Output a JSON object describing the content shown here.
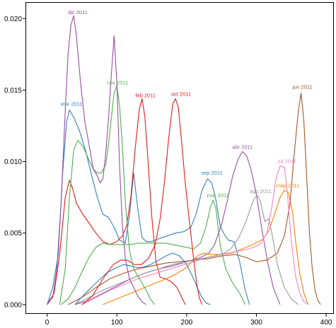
{
  "chart_data": {
    "type": "line",
    "title": "",
    "xlabel": "",
    "ylabel": "",
    "xlim": [
      -30,
      410
    ],
    "ylim": [
      -0.0006,
      0.0211
    ],
    "xticks": [
      0,
      100,
      200,
      300,
      400
    ],
    "xtick_labels": [
      "0",
      "100",
      "200",
      "300",
      "400"
    ],
    "yticks": [
      0.0,
      0.005,
      0.01,
      0.015,
      0.02
    ],
    "ytick_labels": [
      "0.000",
      "0.005",
      "0.010",
      "0.015",
      "0.020"
    ],
    "grid": false,
    "legend": "inline labels at curve peaks",
    "series": [
      {
        "name": "ene 2011",
        "color": "#377eb8",
        "label_x": 35,
        "label_y": 0.0139,
        "x": [
          0,
          8,
          16,
          22,
          28,
          32,
          38,
          46,
          55,
          64,
          72,
          80,
          88,
          96,
          104,
          112,
          118,
          124,
          130,
          136,
          142,
          150,
          160,
          172,
          184,
          196,
          206,
          214,
          222,
          230,
          236,
          242,
          248,
          254,
          260,
          268,
          276,
          284,
          290
        ],
        "y": [
          0,
          0.0012,
          0.0035,
          0.009,
          0.0128,
          0.0136,
          0.0131,
          0.0122,
          0.0108,
          0.009,
          0.0075,
          0.0063,
          0.0061,
          0.0054,
          0.0045,
          0.0043,
          0.0062,
          0.0092,
          0.0067,
          0.0047,
          0.0044,
          0.0044,
          0.0046,
          0.0048,
          0.005,
          0.0051,
          0.0054,
          0.0064,
          0.008,
          0.0088,
          0.0085,
          0.0073,
          0.0055,
          0.0049,
          0.0045,
          0.0044,
          0.003,
          0.001,
          0
        ]
      },
      {
        "name": "feb 2011",
        "color": "#e41a1c",
        "label_x": 141,
        "label_y": 0.0145,
        "x": [
          0,
          10,
          18,
          26,
          32,
          36,
          42,
          50,
          60,
          70,
          80,
          90,
          100,
          108,
          114,
          120,
          126,
          132,
          136,
          140,
          144,
          150,
          156,
          162,
          170,
          178,
          186,
          192,
          198
        ],
        "y": [
          0,
          0.0008,
          0.0035,
          0.0075,
          0.0087,
          0.0082,
          0.0071,
          0.0064,
          0.0057,
          0.005,
          0.0044,
          0.0042,
          0.0044,
          0.0048,
          0.0055,
          0.0075,
          0.0108,
          0.0136,
          0.0144,
          0.0132,
          0.0105,
          0.0062,
          0.003,
          0.0019,
          0.0018,
          0.0016,
          0.0012,
          0.0006,
          0
        ]
      },
      {
        "name": "mar 2011",
        "color": "#4daf4a",
        "label_x": 245,
        "label_y": 0.0075,
        "x": [
          20,
          30,
          40,
          50,
          60,
          70,
          80,
          90,
          100,
          110,
          120,
          130,
          140,
          150,
          160,
          170,
          180,
          190,
          200,
          210,
          220,
          228,
          234,
          238,
          242,
          248,
          256,
          266,
          276,
          284
        ],
        "y": [
          0,
          0.0004,
          0.0012,
          0.0023,
          0.0033,
          0.004,
          0.0043,
          0.0042,
          0.0042,
          0.0042,
          0.0042,
          0.0043,
          0.0043,
          0.0043,
          0.0043,
          0.0043,
          0.0042,
          0.0041,
          0.004,
          0.0039,
          0.0043,
          0.0055,
          0.0068,
          0.0073,
          0.0067,
          0.0042,
          0.0025,
          0.0015,
          0.0008,
          0
        ]
      },
      {
        "name": "abr 2011",
        "color": "#984ea3",
        "label_x": 280,
        "label_y": 0.0109,
        "x": [
          40,
          60,
          80,
          100,
          120,
          140,
          160,
          180,
          200,
          220,
          232,
          240,
          250,
          258,
          266,
          274,
          280,
          286,
          292,
          300,
          308,
          316,
          324,
          334
        ],
        "y": [
          0,
          0.0003,
          0.0008,
          0.0013,
          0.0018,
          0.0022,
          0.0025,
          0.0027,
          0.003,
          0.0033,
          0.0036,
          0.0042,
          0.0056,
          0.0072,
          0.009,
          0.0102,
          0.0107,
          0.0104,
          0.0095,
          0.0077,
          0.0052,
          0.003,
          0.0012,
          0
        ]
      },
      {
        "name": "may 2011",
        "color": "#ff7f00",
        "label_x": 345,
        "label_y": 0.0082,
        "x": [
          80,
          100,
          120,
          140,
          160,
          180,
          200,
          215,
          225,
          235,
          250,
          265,
          280,
          295,
          310,
          318,
          326,
          334,
          340,
          346,
          352,
          356,
          362,
          368,
          374
        ],
        "y": [
          0,
          0.0004,
          0.0008,
          0.0012,
          0.0016,
          0.002,
          0.0026,
          0.0034,
          0.0036,
          0.0035,
          0.0035,
          0.0036,
          0.0039,
          0.0042,
          0.0046,
          0.0052,
          0.0063,
          0.0075,
          0.008,
          0.0078,
          0.0064,
          0.0045,
          0.0022,
          0.0008,
          0
        ]
      },
      {
        "name": "jun 2011",
        "color": "#a65628",
        "label_x": 366,
        "label_y": 0.0151,
        "x": [
          30,
          50,
          70,
          90,
          110,
          130,
          150,
          170,
          190,
          210,
          230,
          250,
          270,
          285,
          300,
          315,
          330,
          340,
          348,
          354,
          360,
          364,
          368,
          372,
          376,
          380,
          384,
          388,
          392
        ],
        "y": [
          0,
          0.0005,
          0.0012,
          0.0018,
          0.0022,
          0.0025,
          0.0027,
          0.0029,
          0.003,
          0.0031,
          0.0032,
          0.0034,
          0.0035,
          0.0033,
          0.003,
          0.0031,
          0.0036,
          0.0048,
          0.007,
          0.0105,
          0.0135,
          0.0148,
          0.0128,
          0.009,
          0.005,
          0.0025,
          0.001,
          0.0003,
          0
        ]
      },
      {
        "name": "jul 2011",
        "color": "#f781bf",
        "label_x": 344,
        "label_y": 0.0099,
        "x": [
          50,
          70,
          90,
          110,
          130,
          150,
          170,
          190,
          210,
          230,
          250,
          270,
          290,
          305,
          315,
          322,
          328,
          334,
          340,
          344,
          350,
          356,
          362,
          368,
          374
        ],
        "y": [
          0,
          0.0005,
          0.001,
          0.0014,
          0.0018,
          0.0021,
          0.0024,
          0.0027,
          0.003,
          0.0033,
          0.0035,
          0.0037,
          0.0039,
          0.0042,
          0.005,
          0.0068,
          0.0088,
          0.0097,
          0.0096,
          0.008,
          0.0045,
          0.002,
          0.0008,
          0.0002,
          0
        ]
      },
      {
        "name": "ago 2011",
        "color": "#999999",
        "label_x": 306,
        "label_y": 0.0078,
        "x": [
          40,
          60,
          80,
          100,
          120,
          140,
          160,
          180,
          200,
          220,
          240,
          255,
          265,
          275,
          285,
          292,
          298,
          302,
          306,
          312,
          318,
          324,
          330,
          340,
          350,
          360
        ],
        "y": [
          0,
          0.0005,
          0.001,
          0.0014,
          0.0018,
          0.0022,
          0.0025,
          0.0028,
          0.003,
          0.0032,
          0.0034,
          0.0036,
          0.004,
          0.0047,
          0.0058,
          0.0068,
          0.0075,
          0.0076,
          0.0072,
          0.0058,
          0.006,
          0.0045,
          0.0028,
          0.0012,
          0.0004,
          0
        ]
      },
      {
        "name": "sep 2011",
        "color": "#377eb8",
        "label_x": 236,
        "label_y": 0.0091,
        "x": [
          40,
          55,
          70,
          85,
          100,
          110,
          120,
          128,
          136,
          144,
          152,
          160,
          170,
          180,
          190,
          200,
          210,
          216,
          222,
          228,
          234
        ],
        "y": [
          0,
          0.0008,
          0.0015,
          0.0022,
          0.0026,
          0.0028,
          0.0027,
          0.0026,
          0.0026,
          0.0027,
          0.0029,
          0.0031,
          0.0034,
          0.0036,
          0.0034,
          0.0028,
          0.0018,
          0.0011,
          0.0005,
          0.0001,
          0
        ]
      },
      {
        "name": "oct 2011",
        "color": "#e41a1c",
        "label_x": 192,
        "label_y": 0.0146,
        "x": [
          50,
          65,
          80,
          95,
          105,
          115,
          125,
          135,
          145,
          155,
          162,
          168,
          174,
          180,
          184,
          188,
          192,
          198,
          204,
          210,
          214,
          218,
          222
        ],
        "y": [
          0,
          0.0006,
          0.0018,
          0.0028,
          0.0031,
          0.0031,
          0.0028,
          0.0028,
          0.0032,
          0.0042,
          0.006,
          0.0085,
          0.0115,
          0.014,
          0.0144,
          0.0138,
          0.0118,
          0.0085,
          0.0058,
          0.0032,
          0.0016,
          0.0005,
          0
        ]
      },
      {
        "name": "nov 2011",
        "color": "#4daf4a",
        "label_x": 101,
        "label_y": 0.0154,
        "x": [
          18,
          26,
          32,
          38,
          44,
          52,
          60,
          66,
          72,
          78,
          84,
          88,
          92,
          96,
          100,
          104,
          108,
          112,
          118,
          124,
          130,
          136,
          142,
          148,
          154
        ],
        "y": [
          0,
          0.0025,
          0.0075,
          0.0108,
          0.0115,
          0.011,
          0.0101,
          0.0095,
          0.0092,
          0.0092,
          0.0098,
          0.0112,
          0.013,
          0.0148,
          0.0153,
          0.0138,
          0.011,
          0.0072,
          0.0038,
          0.0025,
          0.002,
          0.0015,
          0.001,
          0.0004,
          0
        ]
      },
      {
        "name": "dic 2011",
        "color": "#984ea3",
        "label_x": 44,
        "label_y": 0.0203,
        "x": [
          0,
          8,
          14,
          20,
          26,
          30,
          34,
          38,
          42,
          48,
          54,
          60,
          66,
          72,
          76,
          80,
          84,
          88,
          92,
          96,
          100,
          104,
          108,
          112,
          118,
          124,
          130,
          136,
          142
        ],
        "y": [
          0,
          0.0005,
          0.0025,
          0.007,
          0.0135,
          0.0175,
          0.0195,
          0.0202,
          0.0188,
          0.0155,
          0.0128,
          0.0112,
          0.0095,
          0.009,
          0.0085,
          0.0088,
          0.0105,
          0.013,
          0.016,
          0.0188,
          0.0155,
          0.0095,
          0.0055,
          0.0032,
          0.0018,
          0.0012,
          0.0006,
          0.0002,
          0
        ]
      }
    ]
  }
}
